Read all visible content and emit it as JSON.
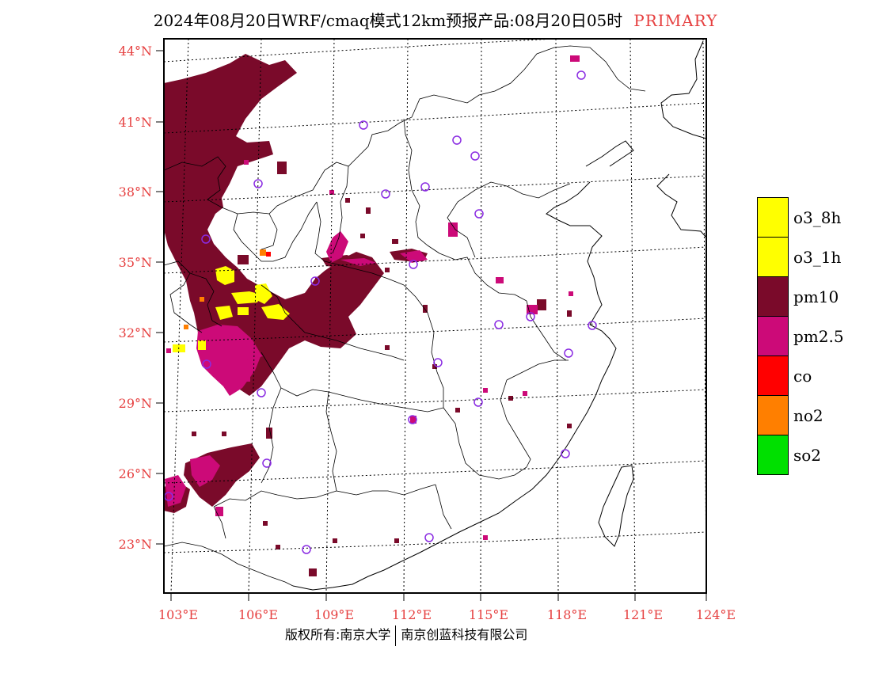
{
  "title": {
    "main": "2024年08月20日WRF/cmaq模式12km预报产品:08月20日05时",
    "tag": "PRIMARY"
  },
  "footer": {
    "left": "版权所有:南京大学",
    "right": "南京创蓝科技有限公司"
  },
  "colors": {
    "pm10": "#7a0a2a",
    "pm25": "#cc0a78",
    "o3": "#ffff00",
    "no2": "#ff7f00",
    "co": "#ff0000",
    "so2": "#00e000",
    "axis_label": "#e64040",
    "station": "#8a2be2"
  },
  "axes": {
    "lat_labels": [
      "44°N",
      "41°N",
      "38°N",
      "35°N",
      "32°N",
      "29°N",
      "26°N",
      "23°N"
    ],
    "lon_labels": [
      "103°E",
      "106°E",
      "109°E",
      "112°E",
      "115°E",
      "118°E",
      "121°E",
      "124°E"
    ]
  },
  "legend": [
    {
      "label": "o3_8h",
      "color": "#ffff00"
    },
    {
      "label": "o3_1h",
      "color": "#ffff00"
    },
    {
      "label": "pm10",
      "color": "#7a0a2a"
    },
    {
      "label": "pm2.5",
      "color": "#cc0a78"
    },
    {
      "label": "co",
      "color": "#ff0000"
    },
    {
      "label": "no2",
      "color": "#ff7f00"
    },
    {
      "label": "so2",
      "color": "#00e000"
    }
  ]
}
